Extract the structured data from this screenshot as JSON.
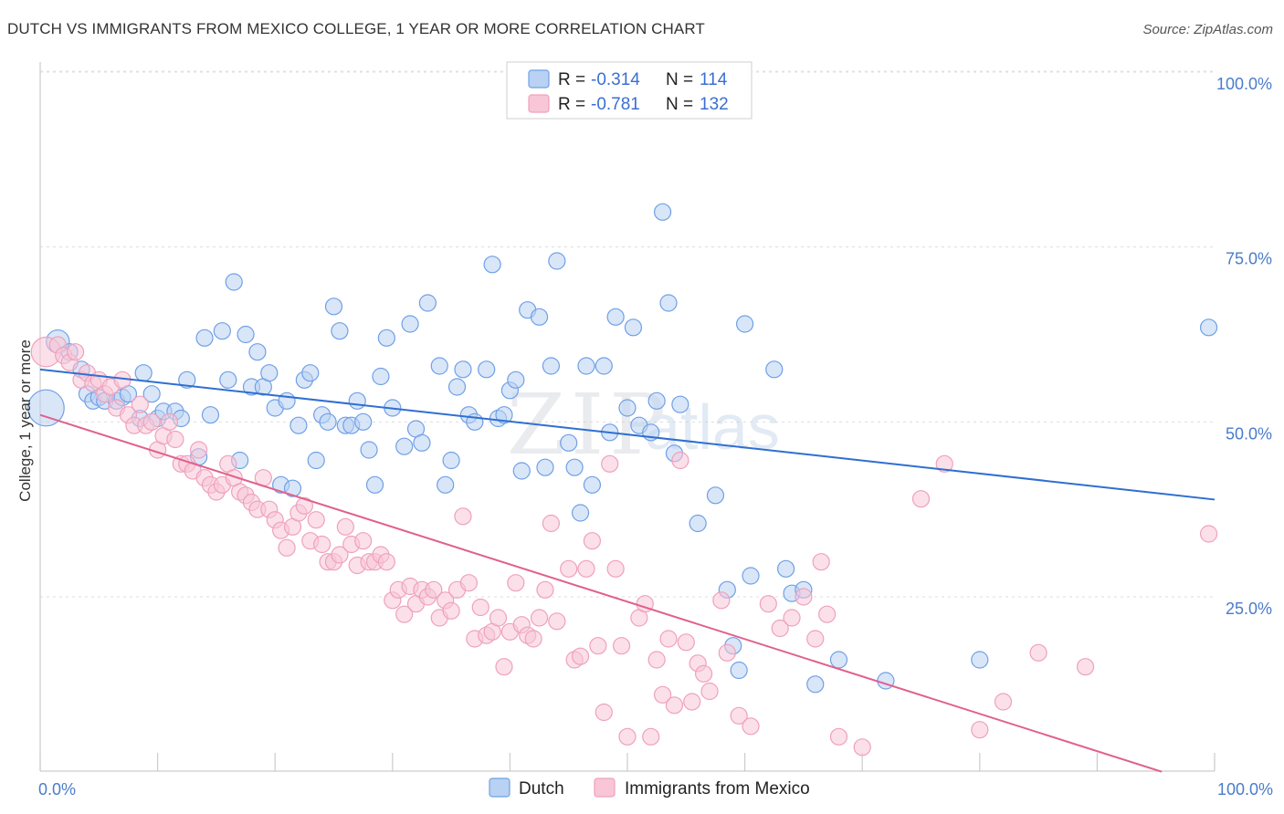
{
  "header": {
    "title": "DUTCH VS IMMIGRANTS FROM MEXICO COLLEGE, 1 YEAR OR MORE CORRELATION CHART",
    "source": "Source: ZipAtlas.com"
  },
  "watermark": {
    "text_zip": "ZIP",
    "text_atlas": "atlas"
  },
  "chart_data": {
    "type": "scatter",
    "ylabel": "College, 1 year or more",
    "xlim": [
      0,
      100
    ],
    "ylim": [
      0,
      105
    ],
    "x_tick_labels": [
      "0.0%",
      "100.0%"
    ],
    "y_ticks": [
      25,
      50,
      75,
      100
    ],
    "y_tick_labels": [
      "25.0%",
      "50.0%",
      "75.0%",
      "100.0%"
    ],
    "grid": "horizontal-dashed",
    "legend_top": {
      "position": "top-center",
      "rows": [
        {
          "r_label": "R =",
          "r_value": "-0.314",
          "n_label": "N =",
          "n_value": "114"
        },
        {
          "r_label": "R =",
          "r_value": "-0.781",
          "n_label": "N =",
          "n_value": "132"
        }
      ]
    },
    "series": [
      {
        "name": "Dutch",
        "color": "#6fa0e6",
        "line_color": "#2f6fd0",
        "trend": {
          "x": [
            0,
            100
          ],
          "y": [
            57.5,
            38.9
          ]
        },
        "points": [
          [
            0.5,
            52,
            2.2
          ],
          [
            1.5,
            61.5,
            1.4
          ],
          [
            2.5,
            60,
            1
          ],
          [
            3.5,
            57.5,
            1
          ],
          [
            4,
            54,
            1
          ],
          [
            4.5,
            53,
            1
          ],
          [
            5,
            53.5,
            1
          ],
          [
            5.5,
            53,
            1
          ],
          [
            6.5,
            53,
            1
          ],
          [
            7,
            53.5,
            1
          ],
          [
            7.5,
            54,
            1
          ],
          [
            8.5,
            50.5,
            1
          ],
          [
            8.8,
            57,
            1
          ],
          [
            9.5,
            54,
            1
          ],
          [
            10,
            50.5,
            1
          ],
          [
            10.5,
            51.5,
            1
          ],
          [
            11.5,
            51.5,
            1
          ],
          [
            12,
            50.5,
            1
          ],
          [
            12.5,
            56,
            1
          ],
          [
            13.5,
            45,
            1
          ],
          [
            14,
            62,
            1
          ],
          [
            14.5,
            51,
            1
          ],
          [
            15.5,
            63,
            1
          ],
          [
            16,
            56,
            1
          ],
          [
            16.5,
            70,
            1
          ],
          [
            17,
            44.5,
            1
          ],
          [
            17.5,
            62.5,
            1
          ],
          [
            18,
            55,
            1
          ],
          [
            18.5,
            60,
            1
          ],
          [
            19,
            55,
            1
          ],
          [
            19.5,
            57,
            1
          ],
          [
            20,
            52,
            1
          ],
          [
            20.5,
            41,
            1
          ],
          [
            21,
            53,
            1
          ],
          [
            21.5,
            40.5,
            1
          ],
          [
            22,
            49.5,
            1
          ],
          [
            22.5,
            56,
            1
          ],
          [
            23,
            57,
            1
          ],
          [
            23.5,
            44.5,
            1
          ],
          [
            24,
            51,
            1
          ],
          [
            24.5,
            50,
            1
          ],
          [
            25,
            66.5,
            1
          ],
          [
            25.5,
            63,
            1
          ],
          [
            26,
            49.5,
            1
          ],
          [
            26.5,
            49.5,
            1
          ],
          [
            27,
            53,
            1
          ],
          [
            27.5,
            50,
            1
          ],
          [
            28,
            46,
            1
          ],
          [
            28.5,
            41,
            1
          ],
          [
            29,
            56.5,
            1
          ],
          [
            29.5,
            62,
            1
          ],
          [
            30,
            52,
            1
          ],
          [
            31,
            46.5,
            1
          ],
          [
            31.5,
            64,
            1
          ],
          [
            32,
            49,
            1
          ],
          [
            32.5,
            47,
            1
          ],
          [
            33,
            67,
            1
          ],
          [
            34,
            58,
            1
          ],
          [
            34.5,
            41,
            1
          ],
          [
            35,
            44.5,
            1
          ],
          [
            35.5,
            55,
            1
          ],
          [
            36,
            57.5,
            1
          ],
          [
            36.5,
            51,
            1
          ],
          [
            37,
            50,
            1
          ],
          [
            38,
            57.5,
            1
          ],
          [
            38.5,
            72.5,
            1
          ],
          [
            39,
            50.5,
            1
          ],
          [
            39.5,
            51,
            1
          ],
          [
            40,
            54.5,
            1
          ],
          [
            40.5,
            56,
            1
          ],
          [
            41,
            43,
            1
          ],
          [
            41.5,
            66,
            1
          ],
          [
            42.5,
            65,
            1
          ],
          [
            43,
            43.5,
            1
          ],
          [
            43.5,
            58,
            1
          ],
          [
            44,
            73,
            1
          ],
          [
            45,
            47,
            1
          ],
          [
            45.5,
            43.5,
            1
          ],
          [
            46,
            37,
            1
          ],
          [
            46.5,
            58,
            1
          ],
          [
            47,
            41,
            1
          ],
          [
            48,
            58,
            1
          ],
          [
            48.5,
            48.5,
            1
          ],
          [
            49,
            65,
            1
          ],
          [
            50,
            52,
            1
          ],
          [
            50.5,
            63.5,
            1
          ],
          [
            51,
            49.5,
            1
          ],
          [
            52,
            48.5,
            1
          ],
          [
            52.5,
            53,
            1
          ],
          [
            53,
            80,
            1
          ],
          [
            53.5,
            67,
            1
          ],
          [
            54,
            45.5,
            1
          ],
          [
            54.5,
            52.5,
            1
          ],
          [
            56,
            35.5,
            1
          ],
          [
            57.5,
            39.5,
            1
          ],
          [
            58.5,
            26,
            1
          ],
          [
            59,
            18,
            1
          ],
          [
            59.5,
            14.5,
            1
          ],
          [
            60,
            64,
            1
          ],
          [
            60.5,
            28,
            1
          ],
          [
            62.5,
            57.5,
            1
          ],
          [
            63.5,
            29,
            1
          ],
          [
            64,
            25.5,
            1
          ],
          [
            65,
            26,
            1
          ],
          [
            66,
            12.5,
            1
          ],
          [
            68,
            16,
            1
          ],
          [
            72,
            13,
            1
          ],
          [
            80,
            16,
            1
          ],
          [
            99.5,
            63.5,
            1
          ]
        ]
      },
      {
        "name": "Immigrants from Mexico",
        "color": "#f0a0bc",
        "line_color": "#e0608e",
        "trend": {
          "x": [
            0,
            95.5
          ],
          "y": [
            51,
            0
          ]
        },
        "points": [
          [
            0.5,
            60,
            1.8
          ],
          [
            1.5,
            61,
            1
          ],
          [
            2,
            59.5,
            1
          ],
          [
            2.5,
            58.5,
            1
          ],
          [
            3,
            60,
            1
          ],
          [
            3.5,
            56,
            1
          ],
          [
            4,
            57,
            1
          ],
          [
            4.5,
            55.5,
            1
          ],
          [
            5,
            56,
            1
          ],
          [
            5.5,
            54,
            1
          ],
          [
            6,
            55,
            1
          ],
          [
            6.5,
            52,
            1
          ],
          [
            7,
            56,
            1
          ],
          [
            7.5,
            51,
            1
          ],
          [
            8,
            49.5,
            1
          ],
          [
            8.5,
            52.5,
            1
          ],
          [
            9,
            49.5,
            1
          ],
          [
            9.5,
            50,
            1
          ],
          [
            10,
            46,
            1
          ],
          [
            10.5,
            48,
            1
          ],
          [
            11,
            50,
            1
          ],
          [
            11.5,
            47.5,
            1
          ],
          [
            12,
            44,
            1
          ],
          [
            12.5,
            44,
            1
          ],
          [
            13,
            43,
            1
          ],
          [
            13.5,
            46,
            1
          ],
          [
            14,
            42,
            1
          ],
          [
            14.5,
            41,
            1
          ],
          [
            15,
            40,
            1
          ],
          [
            15.5,
            41,
            1
          ],
          [
            16,
            44,
            1
          ],
          [
            16.5,
            42,
            1
          ],
          [
            17,
            40,
            1
          ],
          [
            17.5,
            39.5,
            1
          ],
          [
            18,
            38.5,
            1
          ],
          [
            18.5,
            37.5,
            1
          ],
          [
            19,
            42,
            1
          ],
          [
            19.5,
            37.5,
            1
          ],
          [
            20,
            36,
            1
          ],
          [
            20.5,
            34.5,
            1
          ],
          [
            21,
            32,
            1
          ],
          [
            21.5,
            35,
            1
          ],
          [
            22,
            37,
            1
          ],
          [
            22.5,
            38,
            1
          ],
          [
            23,
            33,
            1
          ],
          [
            23.5,
            36,
            1
          ],
          [
            24,
            32.5,
            1
          ],
          [
            24.5,
            30,
            1
          ],
          [
            25,
            30,
            1
          ],
          [
            25.5,
            31,
            1
          ],
          [
            26,
            35,
            1
          ],
          [
            26.5,
            32.5,
            1
          ],
          [
            27,
            29.5,
            1
          ],
          [
            27.5,
            33,
            1
          ],
          [
            28,
            30,
            1
          ],
          [
            28.5,
            30,
            1
          ],
          [
            29,
            31,
            1
          ],
          [
            29.5,
            30,
            1
          ],
          [
            30,
            24.5,
            1
          ],
          [
            30.5,
            26,
            1
          ],
          [
            31,
            22.5,
            1
          ],
          [
            31.5,
            26.5,
            1
          ],
          [
            32,
            24,
            1
          ],
          [
            32.5,
            26,
            1
          ],
          [
            33,
            25,
            1
          ],
          [
            33.5,
            26,
            1
          ],
          [
            34,
            22,
            1
          ],
          [
            34.5,
            24.5,
            1
          ],
          [
            35,
            23,
            1
          ],
          [
            35.5,
            26,
            1
          ],
          [
            36,
            36.5,
            1
          ],
          [
            36.5,
            27,
            1
          ],
          [
            37,
            19,
            1
          ],
          [
            37.5,
            23.5,
            1
          ],
          [
            38,
            19.5,
            1
          ],
          [
            38.5,
            20,
            1
          ],
          [
            39,
            22,
            1
          ],
          [
            39.5,
            15,
            1
          ],
          [
            40,
            20,
            1
          ],
          [
            40.5,
            27,
            1
          ],
          [
            41,
            21,
            1
          ],
          [
            41.5,
            19.5,
            1
          ],
          [
            42,
            19,
            1
          ],
          [
            42.5,
            22,
            1
          ],
          [
            43,
            26,
            1
          ],
          [
            43.5,
            35.5,
            1
          ],
          [
            44,
            21.5,
            1
          ],
          [
            45,
            29,
            1
          ],
          [
            45.5,
            16,
            1
          ],
          [
            46,
            16.5,
            1
          ],
          [
            46.5,
            29,
            1
          ],
          [
            47,
            33,
            1
          ],
          [
            47.5,
            18,
            1
          ],
          [
            48,
            8.5,
            1
          ],
          [
            48.5,
            44,
            1
          ],
          [
            49,
            29,
            1
          ],
          [
            49.5,
            18,
            1
          ],
          [
            50,
            5,
            1
          ],
          [
            51,
            22,
            1
          ],
          [
            51.5,
            24,
            1
          ],
          [
            52,
            5,
            1
          ],
          [
            52.5,
            16,
            1
          ],
          [
            53,
            11,
            1
          ],
          [
            53.5,
            19,
            1
          ],
          [
            54,
            9.5,
            1
          ],
          [
            54.5,
            44.5,
            1
          ],
          [
            55,
            18.5,
            1
          ],
          [
            55.5,
            10,
            1
          ],
          [
            56,
            15.5,
            1
          ],
          [
            56.5,
            14,
            1
          ],
          [
            57,
            11.5,
            1
          ],
          [
            58,
            24.5,
            1
          ],
          [
            58.5,
            17,
            1
          ],
          [
            59.5,
            8,
            1
          ],
          [
            60.5,
            6.5,
            1
          ],
          [
            62,
            24,
            1
          ],
          [
            63,
            20.5,
            1
          ],
          [
            64,
            22,
            1
          ],
          [
            65,
            25,
            1
          ],
          [
            66,
            19,
            1
          ],
          [
            66.5,
            30,
            1
          ],
          [
            67,
            22.5,
            1
          ],
          [
            68,
            5,
            1
          ],
          [
            70,
            3.5,
            1
          ],
          [
            75,
            39,
            1
          ],
          [
            77,
            44,
            1
          ],
          [
            80,
            6,
            1
          ],
          [
            82,
            10,
            1
          ],
          [
            85,
            17,
            1
          ],
          [
            89,
            15,
            1
          ],
          [
            99.5,
            34,
            1
          ]
        ]
      }
    ]
  }
}
